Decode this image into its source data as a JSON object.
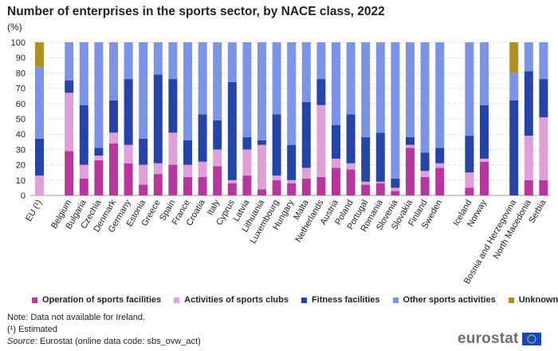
{
  "chart_data": {
    "type": "bar",
    "stacked": true,
    "title": "Number of enterprises in the sports sector, by NACE class, 2022",
    "unit_label": "(%)",
    "ylim": [
      0,
      100
    ],
    "yticks": [
      0,
      10,
      20,
      30,
      40,
      50,
      60,
      70,
      80,
      90,
      100
    ],
    "categories": [
      "EU (¹)",
      "Belgium",
      "Bulgaria",
      "Czechia",
      "Denmark",
      "Germany",
      "Estonia",
      "Greece",
      "Spain",
      "France",
      "Croatia",
      "Italy",
      "Cyprus",
      "Latvia",
      "Lithuania",
      "Luxembourg",
      "Hungary",
      "Malta",
      "Netherlands",
      "Austria",
      "Poland",
      "Portugal",
      "Romania",
      "Slovenia",
      "Slovakia",
      "Finland",
      "Sweden",
      "Iceland",
      "Norway",
      "Bosnia and Herzegovina",
      "North Macedonia",
      "Serbia"
    ],
    "groups": [
      1,
      26,
      2,
      3
    ],
    "series": [
      {
        "name": "Operation of sports facilities",
        "color": "#b7379f",
        "values": [
          0,
          29,
          11,
          23,
          34,
          21,
          7,
          14,
          20,
          12,
          12,
          19,
          8,
          13,
          4,
          10,
          8,
          11,
          12,
          18,
          17,
          7,
          8,
          3,
          31,
          12,
          18,
          5,
          22,
          0,
          10,
          10
        ]
      },
      {
        "name": "Activities of sports clubs",
        "color": "#df9fd7",
        "values": [
          13,
          38,
          9,
          3,
          7,
          12,
          13,
          7,
          21,
          8,
          10,
          11,
          2,
          17,
          29,
          3,
          2,
          7,
          47,
          6,
          4,
          2,
          1,
          2,
          2,
          4,
          3,
          10,
          2,
          0,
          29,
          41
        ]
      },
      {
        "name": "Fitness facilities",
        "color": "#2644a7",
        "values": [
          24,
          8,
          39,
          5,
          21,
          43,
          17,
          58,
          35,
          16,
          31,
          19,
          64,
          8,
          3,
          40,
          23,
          43,
          17,
          22,
          32,
          29,
          32,
          6,
          5,
          12,
          10,
          24,
          35,
          62,
          42,
          25
        ]
      },
      {
        "name": "Other sports activities",
        "color": "#7c93e6",
        "values": [
          47,
          25,
          41,
          69,
          38,
          24,
          63,
          21,
          24,
          64,
          47,
          51,
          26,
          62,
          64,
          47,
          67,
          39,
          24,
          54,
          47,
          62,
          59,
          89,
          62,
          72,
          69,
          61,
          41,
          18,
          19,
          24
        ]
      },
      {
        "name": "Unknown",
        "color": "#b09120",
        "values": [
          16,
          0,
          0,
          0,
          0,
          0,
          0,
          0,
          0,
          0,
          0,
          0,
          0,
          0,
          0,
          0,
          0,
          0,
          0,
          0,
          0,
          0,
          0,
          0,
          0,
          0,
          0,
          0,
          0,
          20,
          0,
          0
        ]
      }
    ],
    "grid": true,
    "legend_position": "bottom"
  },
  "notes": {
    "line1": "Note: Data not available for Ireland.",
    "line2": "(¹) Estimated",
    "source_label": "Source:",
    "source_text": " Eurostat (online data code: sbs_ovw_act)"
  },
  "logo": {
    "text": "eurostat",
    "icon": "eu-flag-icon"
  }
}
